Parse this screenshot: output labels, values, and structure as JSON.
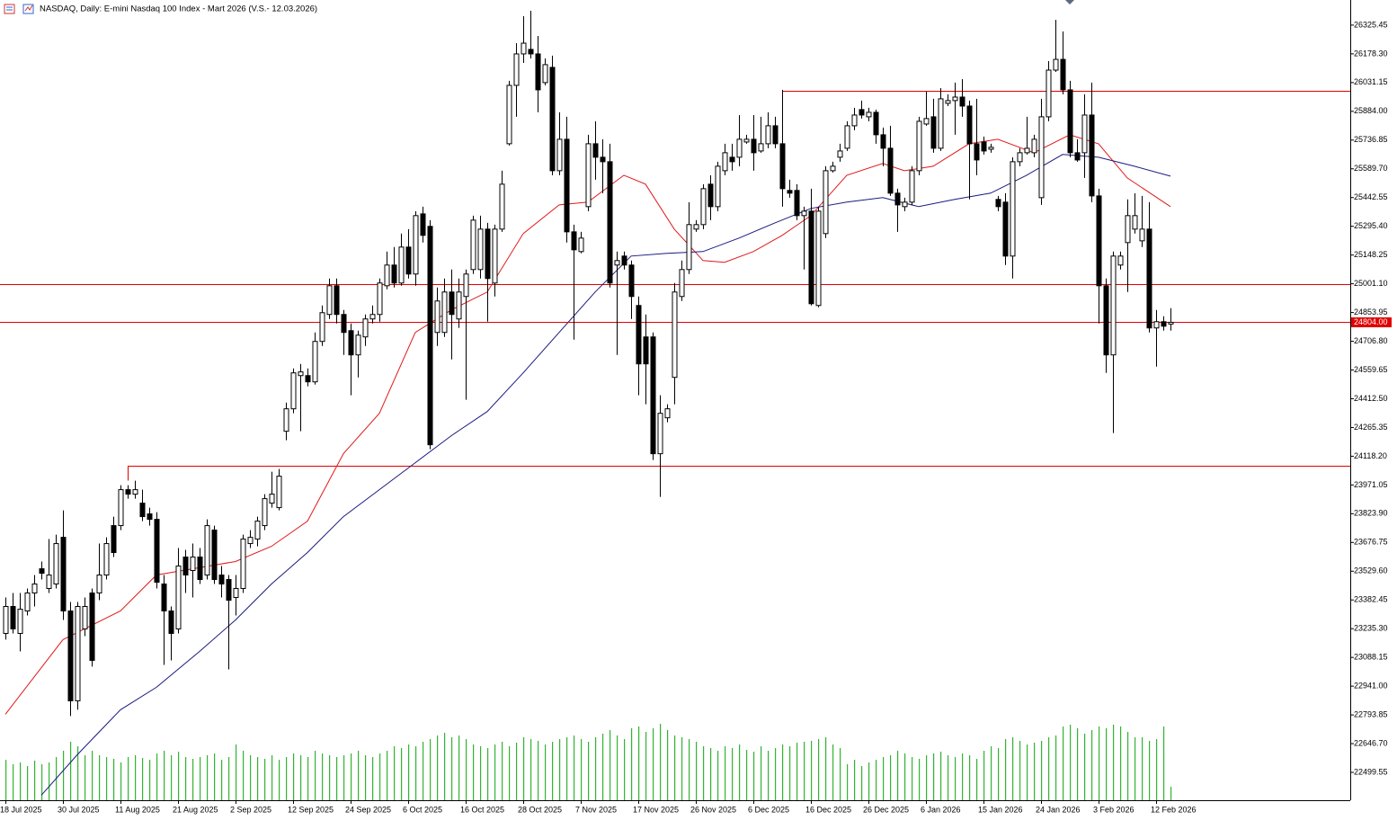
{
  "chart_data": {
    "type": "candlestick",
    "title": "NASDAQ, Daily:  E-mini Nasdaq 100 Index - Mart 2026 (V.S.- 12.03.2026)",
    "categories": [
      "18 Jul 2025",
      null,
      null,
      null,
      null,
      null,
      null,
      null,
      "30 Jul 2025",
      null,
      null,
      null,
      null,
      null,
      null,
      null,
      "11 Aug 2025",
      null,
      null,
      null,
      null,
      null,
      null,
      null,
      "21 Aug 2025",
      null,
      null,
      null,
      null,
      null,
      null,
      null,
      "2 Sep 2025",
      null,
      null,
      null,
      null,
      null,
      null,
      null,
      "12 Sep 2025",
      null,
      null,
      null,
      null,
      null,
      null,
      null,
      "24 Sep 2025",
      null,
      null,
      null,
      null,
      null,
      null,
      null,
      "6 Oct 2025",
      null,
      null,
      null,
      null,
      null,
      null,
      null,
      "16 Oct 2025",
      null,
      null,
      null,
      null,
      null,
      null,
      null,
      "28 Oct 2025",
      null,
      null,
      null,
      null,
      null,
      null,
      null,
      "7 Nov 2025",
      null,
      null,
      null,
      null,
      null,
      null,
      null,
      "17 Nov 2025",
      null,
      null,
      null,
      null,
      null,
      null,
      null,
      "26 Nov 2025",
      null,
      null,
      null,
      null,
      null,
      null,
      null,
      "6 Dec 2025",
      null,
      null,
      null,
      null,
      null,
      null,
      null,
      "16 Dec 2025",
      null,
      null,
      null,
      null,
      null,
      null,
      null,
      "26 Dec 2025",
      null,
      null,
      null,
      null,
      null,
      null,
      null,
      "6 Jan 2026",
      null,
      null,
      null,
      null,
      null,
      null,
      null,
      "15 Jan 2026",
      null,
      null,
      null,
      null,
      null,
      null,
      null,
      "24 Jan 2026",
      null,
      null,
      null,
      null,
      null,
      null,
      null,
      "3 Feb 2026",
      null,
      null,
      null,
      null,
      null,
      null,
      null,
      "12 Feb 2026",
      null,
      null
    ],
    "open": [
      23211,
      23349,
      23211,
      23326,
      23418,
      23542,
      23441,
      23464,
      23703,
      23326,
      22866,
      23234,
      23418,
      23418,
      23510,
      23763,
      23763,
      23947,
      23924,
      23878,
      23823,
      23795,
      23464,
      23326,
      23234,
      23602,
      23533,
      23602,
      23510,
      23740,
      23510,
      23487,
      23395,
      23441,
      23671,
      23694,
      23763,
      23878,
      23855,
      24246,
      24361,
      24531,
      24531,
      24499,
      24706,
      24844,
      24991,
      24844,
      24761,
      24637,
      24729,
      24821,
      24844,
      24991,
      25097,
      25005,
      25189,
      25051,
      25359,
      25295,
      24752,
      24752,
      24959,
      24821,
      24936,
      25074,
      25074,
      25281,
      25005,
      25281,
      25718,
      26017,
      26178,
      26201,
      26178,
      26031,
      26109,
      25580,
      25741,
      25267,
      25166,
      25396,
      25718,
      25649,
      25626,
      25097,
      25143,
      25097,
      24890,
      24729,
      24729,
      24131,
      24315,
      24522,
      24936,
      25074,
      25281,
      25304,
      25511,
      25396,
      25580,
      25649,
      25649,
      25727,
      25741,
      25681,
      25718,
      25810,
      25718,
      25479,
      25479,
      25350,
      25373,
      24890,
      25258,
      25580,
      25649,
      25695,
      25810,
      25893,
      25856,
      25879,
      25764,
      25695,
      25465,
      25396,
      25419,
      25580,
      25819,
      25856,
      25695,
      25925,
      25939,
      25957,
      25911,
      25718,
      25727,
      25690,
      25433,
      25419,
      25143,
      25626,
      25672,
      25672,
      25442,
      25856,
      26095,
      26150,
      25994,
      25672,
      25672,
      25865,
      25451,
      24991,
      24637,
      25097,
      25212,
      25281,
      25221,
      25281,
      24775,
      24807,
      24795
    ],
    "high": [
      23395,
      23418,
      23418,
      23441,
      23510,
      23579,
      23694,
      23717,
      23841,
      23372,
      23372,
      23395,
      23441,
      23671,
      23703,
      23809,
      23970,
      23970,
      23993,
      23947,
      23855,
      23832,
      23510,
      23349,
      23648,
      23639,
      23671,
      23648,
      23795,
      23763,
      23556,
      23510,
      23510,
      23717,
      23740,
      23809,
      23924,
      24039,
      24053,
      24393,
      24568,
      24591,
      24568,
      24752,
      24890,
      25028,
      25028,
      24867,
      24798,
      24761,
      24844,
      24890,
      25028,
      25166,
      25189,
      25258,
      25281,
      25373,
      25396,
      25327,
      24982,
      25028,
      25074,
      25028,
      25074,
      25350,
      25350,
      25313,
      25304,
      25580,
      26040,
      26233,
      26371,
      26399,
      26270,
      26155,
      26169,
      25879,
      25856,
      25304,
      25267,
      25764,
      25833,
      25741,
      25718,
      25166,
      25166,
      25120,
      24936,
      24844,
      24752,
      24430,
      24384,
      25005,
      25120,
      25419,
      25327,
      25511,
      25557,
      25626,
      25718,
      25718,
      25865,
      25764,
      25865,
      25856,
      25879,
      25856,
      25994,
      25534,
      25511,
      25396,
      25488,
      25396,
      25603,
      25626,
      25718,
      25833,
      25902,
      25939,
      25902,
      25893,
      25801,
      25810,
      25488,
      25442,
      25603,
      25856,
      25985,
      25948,
      26003,
      25971,
      26031,
      26049,
      25939,
      25948,
      25755,
      25718,
      25451,
      25465,
      25649,
      25695,
      25856,
      25764,
      25948,
      26141,
      26353,
      26293,
      26040,
      25741,
      25971,
      26031,
      25488,
      25028,
      25166,
      25166,
      25433,
      25465,
      25451,
      25419,
      24867,
      24835,
      24876
    ],
    "low": [
      23179,
      23211,
      23119,
      23303,
      23349,
      23487,
      23418,
      23441,
      23280,
      22788,
      22820,
      23197,
      23041,
      23381,
      23487,
      23602,
      23740,
      23901,
      23901,
      23786,
      23763,
      23441,
      23050,
      23073,
      23211,
      23418,
      23395,
      23464,
      23487,
      23464,
      23395,
      23027,
      23303,
      23418,
      23648,
      23657,
      23740,
      23855,
      23841,
      24200,
      24338,
      24246,
      24476,
      24485,
      24683,
      24821,
      24798,
      24637,
      24430,
      24522,
      24683,
      24798,
      24807,
      24973,
      24982,
      24991,
      25028,
      24991,
      25212,
      24154,
      24683,
      24729,
      24614,
      24775,
      24407,
      25051,
      25028,
      24807,
      24936,
      25267,
      25709,
      25856,
      26132,
      26155,
      25879,
      26017,
      25557,
      25557,
      25212,
      24715,
      25157,
      25373,
      25534,
      25465,
      24982,
      24637,
      25074,
      24821,
      24430,
      24384,
      24099,
      23910,
      24292,
      24384,
      24913,
      25051,
      25267,
      25281,
      25327,
      25373,
      25557,
      25580,
      25603,
      25718,
      25580,
      25672,
      25695,
      25695,
      25396,
      25442,
      25327,
      25074,
      24890,
      24881,
      25235,
      25571,
      25626,
      25681,
      25787,
      25847,
      25833,
      25718,
      25603,
      25451,
      25267,
      25373,
      25405,
      25557,
      25810,
      25672,
      25681,
      25911,
      25764,
      25856,
      25433,
      25557,
      25663,
      25672,
      25373,
      25097,
      25028,
      25603,
      25663,
      25649,
      25405,
      25833,
      26086,
      25971,
      25649,
      25626,
      25543,
      25419,
      24798,
      24545,
      24237,
      25074,
      24959,
      25258,
      25189,
      24752,
      24577,
      24761,
      24761
    ],
    "close": [
      23349,
      23234,
      23335,
      23418,
      23464,
      23519,
      23510,
      23671,
      23326,
      22866,
      23349,
      23349,
      23073,
      23510,
      23671,
      23625,
      23947,
      23924,
      23947,
      23809,
      23795,
      23473,
      23326,
      23211,
      23556,
      23510,
      23602,
      23487,
      23763,
      23487,
      23464,
      23381,
      23441,
      23694,
      23703,
      23786,
      23901,
      23924,
      24016,
      24361,
      24545,
      24550,
      24499,
      24706,
      24853,
      24991,
      24844,
      24752,
      24637,
      24738,
      24821,
      24844,
      25005,
      25097,
      25005,
      25189,
      25051,
      25350,
      25249,
      24177,
      24913,
      24959,
      24844,
      24959,
      25051,
      25327,
      25281,
      25028,
      25281,
      25511,
      26017,
      26178,
      26233,
      26178,
      25994,
      26123,
      25580,
      25741,
      25267,
      25175,
      25235,
      25718,
      25649,
      25626,
      25005,
      25120,
      25097,
      24936,
      24591,
      24591,
      24131,
      24338,
      24361,
      24959,
      25074,
      25304,
      25304,
      25488,
      25396,
      25603,
      25672,
      25626,
      25741,
      25741,
      25672,
      25718,
      25810,
      25718,
      25488,
      25465,
      25350,
      25373,
      24899,
      25373,
      25580,
      25603,
      25681,
      25810,
      25865,
      25865,
      25879,
      25764,
      25695,
      25465,
      25405,
      25419,
      25580,
      25833,
      25847,
      25695,
      25948,
      25939,
      25957,
      25911,
      25718,
      25635,
      25681,
      25700,
      25396,
      25143,
      25626,
      25672,
      25695,
      25741,
      25856,
      26095,
      26150,
      25994,
      25672,
      25635,
      25865,
      25451,
      24991,
      24637,
      25143,
      25143,
      25350,
      25350,
      25281,
      24775,
      24807,
      24784,
      24804
    ],
    "volume": [
      45,
      40,
      42,
      38,
      44,
      40,
      42,
      48,
      55,
      65,
      60,
      50,
      55,
      50,
      48,
      46,
      42,
      48,
      50,
      47,
      45,
      52,
      55,
      50,
      54,
      48,
      46,
      48,
      50,
      52,
      45,
      48,
      62,
      55,
      50,
      48,
      46,
      50,
      45,
      48,
      52,
      50,
      48,
      55,
      52,
      50,
      48,
      50,
      52,
      55,
      50,
      48,
      52,
      55,
      60,
      58,
      62,
      60,
      65,
      68,
      72,
      75,
      70,
      72,
      68,
      62,
      60,
      58,
      62,
      65,
      60,
      64,
      70,
      68,
      66,
      62,
      65,
      68,
      70,
      72,
      68,
      65,
      70,
      74,
      78,
      72,
      68,
      80,
      82,
      76,
      80,
      85,
      78,
      72,
      70,
      68,
      65,
      60,
      58,
      55,
      60,
      58,
      62,
      56,
      54,
      60,
      55,
      58,
      62,
      60,
      64,
      65,
      66,
      68,
      70,
      62,
      58,
      40,
      45,
      38,
      42,
      45,
      48,
      50,
      55,
      52,
      48,
      46,
      50,
      52,
      54,
      50,
      48,
      52,
      50,
      46,
      55,
      60,
      58,
      68,
      70,
      66,
      62,
      64,
      66,
      70,
      72,
      82,
      84,
      80,
      74,
      78,
      82,
      80,
      84,
      82,
      76,
      70,
      70,
      66,
      68,
      82,
      15
    ],
    "up_color": "#ffffff",
    "down_color": "#000000",
    "volume_color": "#32b432",
    "ylim": [
      22357,
      26454
    ],
    "yticks": [
      26325.45,
      {
        "value": 26178.3,
        "label": "26178.30"
      },
      26031.15,
      {
        "value": 25884,
        "label": "25884.00"
      },
      25736.85,
      {
        "value": 25589.7,
        "label": "25589.70"
      },
      25442.55,
      {
        "value": 25295.4,
        "label": "25295.40"
      },
      25148.25,
      {
        "value": 25001.1,
        "label": "25001.10"
      },
      24853.95,
      {
        "value": 24706.8,
        "label": "24706.80"
      },
      24559.65,
      {
        "value": 24412.5,
        "label": "24412.50"
      },
      24265.35,
      {
        "value": 24118.2,
        "label": "24118.20"
      },
      23971.05,
      {
        "value": 23823.9,
        "label": "23823.90"
      },
      23676.75,
      {
        "value": 23529.6,
        "label": "23529.60"
      },
      23382.45,
      {
        "value": 23235.3,
        "label": "23235.30"
      },
      23088.15,
      {
        "value": 22941,
        "label": "22941.00"
      },
      22793.85,
      {
        "value": 22646.7,
        "label": "22646.70"
      },
      22499.55
    ],
    "lines": [
      {
        "color": "#e0191a",
        "x": [
          0,
          8,
          16,
          21,
          32,
          37,
          42,
          47,
          52,
          57,
          62,
          67,
          72,
          77,
          81,
          86,
          89,
          93,
          97,
          100,
          104,
          108,
          112,
          117,
          122,
          125,
          129,
          134,
          138,
          143,
          148,
          152,
          156,
          162
        ],
        "values": [
          22797,
          23179,
          23326,
          23510,
          23579,
          23657,
          23786,
          24131,
          24338,
          24752,
          24867,
          24959,
          25258,
          25405,
          25419,
          25557,
          25511,
          25281,
          25120,
          25111,
          25166,
          25249,
          25350,
          25557,
          25617,
          25580,
          25603,
          25718,
          25741,
          25672,
          25764,
          25718,
          25543,
          25396
        ]
      },
      {
        "color": "#1a1a80",
        "x": [
          5,
          10,
          16,
          21,
          27,
          32,
          37,
          42,
          47,
          52,
          57,
          62,
          67,
          72,
          77,
          82,
          87,
          92,
          97,
          102,
          107,
          112,
          117,
          122,
          127,
          132,
          137,
          142,
          147,
          152,
          157,
          162
        ],
        "values": [
          22383,
          22590,
          22820,
          22935,
          23119,
          23280,
          23464,
          23625,
          23809,
          23947,
          24085,
          24223,
          24347,
          24545,
          24752,
          24959,
          25143,
          25157,
          25166,
          25235,
          25313,
          25387,
          25419,
          25442,
          25396,
          25433,
          25465,
          25557,
          25663,
          25649,
          25603,
          25552
        ]
      }
    ],
    "levels": [
      {
        "value": 25990,
        "start": 108
      },
      {
        "value": 25001,
        "start": 0
      },
      {
        "value": 24071,
        "start": 17
      }
    ],
    "level_color": "#e00000",
    "current_price": {
      "value": 24804,
      "label": "24804.00"
    }
  }
}
